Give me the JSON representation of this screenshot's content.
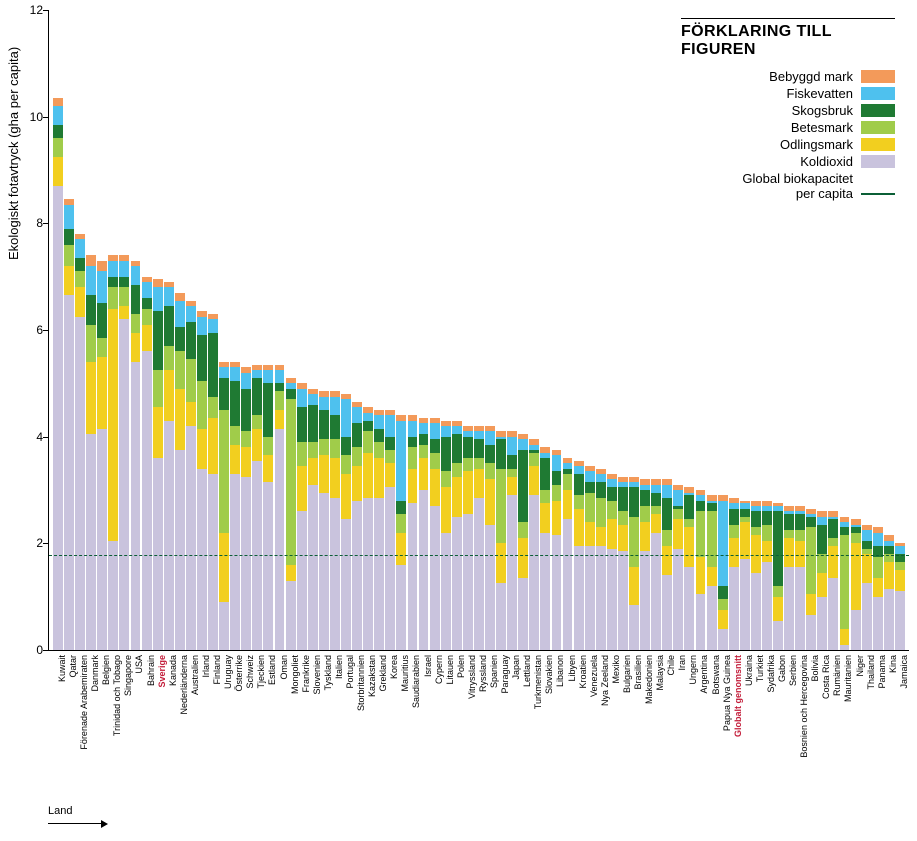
{
  "chart": {
    "type": "stacked-bar",
    "y_axis_label": "Ekologiskt fotavtryck (gha per capita)",
    "x_axis_label": "Land",
    "ylim": [
      0,
      12
    ],
    "ytick_step": 2,
    "yticks": [
      0,
      2,
      4,
      6,
      8,
      10,
      12
    ],
    "background_color": "#ffffff",
    "axis_color": "#000000",
    "grid_color": "#999999",
    "label_fontsize": 13,
    "tick_fontsize": 12,
    "xlabel_fontsize": 9,
    "reference_line": {
      "value": 1.78,
      "label_main": "Global biokapacitet",
      "label_sub": "per capita",
      "color": "#0b5f36"
    },
    "stack_order": [
      "koldioxid",
      "odlingsmark",
      "betesmark",
      "skogsbruk",
      "fiskevatten",
      "bebyggd"
    ],
    "colors": {
      "bebyggd": "#f39a5a",
      "fiskevatten": "#4ec1ee",
      "skogsbruk": "#1f7a33",
      "betesmark": "#a0cc4a",
      "odlingsmark": "#f2cf1f",
      "koldioxid": "#c9c3dd"
    },
    "highlight_color": "#c31d3a",
    "highlight_labels": [
      "Sverige",
      "Globalt genomsnitt"
    ]
  },
  "legend": {
    "title": "FÖRKLARING TILL FIGUREN",
    "items": [
      {
        "key": "bebyggd",
        "label": "Bebyggd mark"
      },
      {
        "key": "fiskevatten",
        "label": "Fiskevatten"
      },
      {
        "key": "skogsbruk",
        "label": "Skogsbruk"
      },
      {
        "key": "betesmark",
        "label": "Betesmark"
      },
      {
        "key": "odlingsmark",
        "label": "Odlingsmark"
      },
      {
        "key": "koldioxid",
        "label": "Koldioxid"
      }
    ]
  },
  "data": [
    {
      "label": "Kuwait",
      "koldioxid": 8.7,
      "odlingsmark": 0.55,
      "betesmark": 0.35,
      "skogsbruk": 0.25,
      "fiskevatten": 0.35,
      "bebyggd": 0.15
    },
    {
      "label": "Qatar",
      "koldioxid": 6.65,
      "odlingsmark": 0.55,
      "betesmark": 0.4,
      "skogsbruk": 0.3,
      "fiskevatten": 0.45,
      "bebyggd": 0.1
    },
    {
      "label": "Förenade Arabemiraten",
      "koldioxid": 6.25,
      "odlingsmark": 0.55,
      "betesmark": 0.3,
      "skogsbruk": 0.25,
      "fiskevatten": 0.35,
      "bebyggd": 0.1
    },
    {
      "label": "Danmark",
      "koldioxid": 4.05,
      "odlingsmark": 1.35,
      "betesmark": 0.7,
      "skogsbruk": 0.55,
      "fiskevatten": 0.55,
      "bebyggd": 0.2
    },
    {
      "label": "Belgien",
      "koldioxid": 4.15,
      "odlingsmark": 1.35,
      "betesmark": 0.35,
      "skogsbruk": 0.65,
      "fiskevatten": 0.6,
      "bebyggd": 0.2
    },
    {
      "label": "Trinidad och Tobago",
      "koldioxid": 2.05,
      "odlingsmark": 4.35,
      "betesmark": 0.4,
      "skogsbruk": 0.2,
      "fiskevatten": 0.3,
      "bebyggd": 0.1
    },
    {
      "label": "Singapore",
      "koldioxid": 6.2,
      "odlingsmark": 0.25,
      "betesmark": 0.35,
      "skogsbruk": 0.2,
      "fiskevatten": 0.3,
      "bebyggd": 0.1
    },
    {
      "label": "USA",
      "koldioxid": 5.4,
      "odlingsmark": 0.55,
      "betesmark": 0.35,
      "skogsbruk": 0.55,
      "fiskevatten": 0.35,
      "bebyggd": 0.1
    },
    {
      "label": "Bahrain",
      "koldioxid": 5.6,
      "odlingsmark": 0.5,
      "betesmark": 0.3,
      "skogsbruk": 0.2,
      "fiskevatten": 0.3,
      "bebyggd": 0.1
    },
    {
      "label": "Sverige",
      "koldioxid": 3.6,
      "odlingsmark": 0.95,
      "betesmark": 0.7,
      "skogsbruk": 1.1,
      "fiskevatten": 0.45,
      "bebyggd": 0.15
    },
    {
      "label": "Kanada",
      "koldioxid": 4.3,
      "odlingsmark": 0.95,
      "betesmark": 0.45,
      "skogsbruk": 0.75,
      "fiskevatten": 0.35,
      "bebyggd": 0.1
    },
    {
      "label": "Nederländerna",
      "koldioxid": 3.75,
      "odlingsmark": 1.15,
      "betesmark": 0.7,
      "skogsbruk": 0.45,
      "fiskevatten": 0.5,
      "bebyggd": 0.15
    },
    {
      "label": "Australien",
      "koldioxid": 4.2,
      "odlingsmark": 0.45,
      "betesmark": 0.8,
      "skogsbruk": 0.7,
      "fiskevatten": 0.3,
      "bebyggd": 0.1
    },
    {
      "label": "Irland",
      "koldioxid": 3.4,
      "odlingsmark": 0.75,
      "betesmark": 0.9,
      "skogsbruk": 0.85,
      "fiskevatten": 0.35,
      "bebyggd": 0.1
    },
    {
      "label": "Finland",
      "koldioxid": 3.3,
      "odlingsmark": 1.05,
      "betesmark": 0.4,
      "skogsbruk": 1.2,
      "fiskevatten": 0.25,
      "bebyggd": 0.1
    },
    {
      "label": "Uruguay",
      "koldioxid": 0.9,
      "odlingsmark": 1.3,
      "betesmark": 2.3,
      "skogsbruk": 0.6,
      "fiskevatten": 0.2,
      "bebyggd": 0.1
    },
    {
      "label": "Österrike",
      "koldioxid": 3.3,
      "odlingsmark": 0.55,
      "betesmark": 0.35,
      "skogsbruk": 0.85,
      "fiskevatten": 0.25,
      "bebyggd": 0.1
    },
    {
      "label": "Schweiz",
      "koldioxid": 3.25,
      "odlingsmark": 0.55,
      "betesmark": 0.3,
      "skogsbruk": 0.8,
      "fiskevatten": 0.3,
      "bebyggd": 0.1
    },
    {
      "label": "Tjeckien",
      "koldioxid": 3.55,
      "odlingsmark": 0.6,
      "betesmark": 0.25,
      "skogsbruk": 0.7,
      "fiskevatten": 0.15,
      "bebyggd": 0.1
    },
    {
      "label": "Estland",
      "koldioxid": 3.15,
      "odlingsmark": 0.5,
      "betesmark": 0.35,
      "skogsbruk": 1.0,
      "fiskevatten": 0.25,
      "bebyggd": 0.1
    },
    {
      "label": "Oman",
      "koldioxid": 4.15,
      "odlingsmark": 0.35,
      "betesmark": 0.35,
      "skogsbruk": 0.15,
      "fiskevatten": 0.25,
      "bebyggd": 0.1
    },
    {
      "label": "Mongoliet",
      "koldioxid": 1.3,
      "odlingsmark": 0.3,
      "betesmark": 3.1,
      "skogsbruk": 0.2,
      "fiskevatten": 0.1,
      "bebyggd": 0.1
    },
    {
      "label": "Frankrike",
      "koldioxid": 2.6,
      "odlingsmark": 0.85,
      "betesmark": 0.45,
      "skogsbruk": 0.65,
      "fiskevatten": 0.35,
      "bebyggd": 0.1
    },
    {
      "label": "Slovenien",
      "koldioxid": 3.1,
      "odlingsmark": 0.5,
      "betesmark": 0.3,
      "skogsbruk": 0.7,
      "fiskevatten": 0.2,
      "bebyggd": 0.1
    },
    {
      "label": "Tyskland",
      "koldioxid": 2.95,
      "odlingsmark": 0.7,
      "betesmark": 0.3,
      "skogsbruk": 0.55,
      "fiskevatten": 0.25,
      "bebyggd": 0.1
    },
    {
      "label": "Italien",
      "koldioxid": 2.85,
      "odlingsmark": 0.75,
      "betesmark": 0.35,
      "skogsbruk": 0.45,
      "fiskevatten": 0.35,
      "bebyggd": 0.1
    },
    {
      "label": "Portugal",
      "koldioxid": 2.45,
      "odlingsmark": 0.85,
      "betesmark": 0.35,
      "skogsbruk": 0.35,
      "fiskevatten": 0.7,
      "bebyggd": 0.1
    },
    {
      "label": "Storbritannien",
      "koldioxid": 2.8,
      "odlingsmark": 0.65,
      "betesmark": 0.35,
      "skogsbruk": 0.45,
      "fiskevatten": 0.3,
      "bebyggd": 0.1
    },
    {
      "label": "Kazakstan",
      "koldioxid": 2.85,
      "odlingsmark": 0.85,
      "betesmark": 0.4,
      "skogsbruk": 0.2,
      "fiskevatten": 0.15,
      "bebyggd": 0.1
    },
    {
      "label": "Grekland",
      "koldioxid": 2.85,
      "odlingsmark": 0.75,
      "betesmark": 0.3,
      "skogsbruk": 0.25,
      "fiskevatten": 0.25,
      "bebyggd": 0.1
    },
    {
      "label": "Korea",
      "koldioxid": 3.05,
      "odlingsmark": 0.45,
      "betesmark": 0.25,
      "skogsbruk": 0.25,
      "fiskevatten": 0.4,
      "bebyggd": 0.1
    },
    {
      "label": "Mauritius",
      "koldioxid": 1.6,
      "odlingsmark": 0.6,
      "betesmark": 0.35,
      "skogsbruk": 0.25,
      "fiskevatten": 1.5,
      "bebyggd": 0.1
    },
    {
      "label": "Saudiarabien",
      "koldioxid": 2.75,
      "odlingsmark": 0.65,
      "betesmark": 0.4,
      "skogsbruk": 0.2,
      "fiskevatten": 0.3,
      "bebyggd": 0.1
    },
    {
      "label": "Israel",
      "koldioxid": 3.0,
      "odlingsmark": 0.6,
      "betesmark": 0.25,
      "skogsbruk": 0.2,
      "fiskevatten": 0.2,
      "bebyggd": 0.1
    },
    {
      "label": "Cypern",
      "koldioxid": 2.7,
      "odlingsmark": 0.7,
      "betesmark": 0.3,
      "skogsbruk": 0.25,
      "fiskevatten": 0.3,
      "bebyggd": 0.1
    },
    {
      "label": "Litauen",
      "koldioxid": 2.2,
      "odlingsmark": 0.85,
      "betesmark": 0.3,
      "skogsbruk": 0.65,
      "fiskevatten": 0.2,
      "bebyggd": 0.1
    },
    {
      "label": "Polen",
      "koldioxid": 2.5,
      "odlingsmark": 0.75,
      "betesmark": 0.25,
      "skogsbruk": 0.55,
      "fiskevatten": 0.15,
      "bebyggd": 0.1
    },
    {
      "label": "Vitryssland",
      "koldioxid": 2.55,
      "odlingsmark": 0.8,
      "betesmark": 0.25,
      "skogsbruk": 0.4,
      "fiskevatten": 0.1,
      "bebyggd": 0.1
    },
    {
      "label": "Ryssland",
      "koldioxid": 2.85,
      "odlingsmark": 0.55,
      "betesmark": 0.2,
      "skogsbruk": 0.35,
      "fiskevatten": 0.15,
      "bebyggd": 0.1
    },
    {
      "label": "Spanien",
      "koldioxid": 2.35,
      "odlingsmark": 0.85,
      "betesmark": 0.3,
      "skogsbruk": 0.35,
      "fiskevatten": 0.25,
      "bebyggd": 0.1
    },
    {
      "label": "Paraguay",
      "koldioxid": 1.25,
      "odlingsmark": 0.75,
      "betesmark": 1.4,
      "skogsbruk": 0.55,
      "fiskevatten": 0.05,
      "bebyggd": 0.1
    },
    {
      "label": "Japan",
      "koldioxid": 2.9,
      "odlingsmark": 0.35,
      "betesmark": 0.15,
      "skogsbruk": 0.25,
      "fiskevatten": 0.35,
      "bebyggd": 0.1
    },
    {
      "label": "Lettland",
      "koldioxid": 1.35,
      "odlingsmark": 0.75,
      "betesmark": 0.3,
      "skogsbruk": 1.35,
      "fiskevatten": 0.2,
      "bebyggd": 0.1
    },
    {
      "label": "Turkmenistan",
      "koldioxid": 2.9,
      "odlingsmark": 0.55,
      "betesmark": 0.25,
      "skogsbruk": 0.05,
      "fiskevatten": 0.1,
      "bebyggd": 0.1
    },
    {
      "label": "Slovakien",
      "koldioxid": 2.2,
      "odlingsmark": 0.55,
      "betesmark": 0.25,
      "skogsbruk": 0.6,
      "fiskevatten": 0.1,
      "bebyggd": 0.1
    },
    {
      "label": "Libanon",
      "koldioxid": 2.15,
      "odlingsmark": 0.65,
      "betesmark": 0.3,
      "skogsbruk": 0.25,
      "fiskevatten": 0.3,
      "bebyggd": 0.1
    },
    {
      "label": "Libyen",
      "koldioxid": 2.45,
      "odlingsmark": 0.55,
      "betesmark": 0.3,
      "skogsbruk": 0.1,
      "fiskevatten": 0.1,
      "bebyggd": 0.1
    },
    {
      "label": "Kroatien",
      "koldioxid": 1.95,
      "odlingsmark": 0.7,
      "betesmark": 0.25,
      "skogsbruk": 0.4,
      "fiskevatten": 0.15,
      "bebyggd": 0.1
    },
    {
      "label": "Venezuela",
      "koldioxid": 1.95,
      "odlingsmark": 0.45,
      "betesmark": 0.55,
      "skogsbruk": 0.2,
      "fiskevatten": 0.2,
      "bebyggd": 0.1
    },
    {
      "label": "Nya Zeeland",
      "koldioxid": 1.95,
      "odlingsmark": 0.35,
      "betesmark": 0.55,
      "skogsbruk": 0.3,
      "fiskevatten": 0.15,
      "bebyggd": 0.1
    },
    {
      "label": "Mexiko",
      "koldioxid": 1.9,
      "odlingsmark": 0.55,
      "betesmark": 0.35,
      "skogsbruk": 0.25,
      "fiskevatten": 0.15,
      "bebyggd": 0.1
    },
    {
      "label": "Bulgarien",
      "koldioxid": 1.85,
      "odlingsmark": 0.5,
      "betesmark": 0.25,
      "skogsbruk": 0.45,
      "fiskevatten": 0.1,
      "bebyggd": 0.1
    },
    {
      "label": "Brasilien",
      "koldioxid": 0.85,
      "odlingsmark": 0.7,
      "betesmark": 0.95,
      "skogsbruk": 0.55,
      "fiskevatten": 0.1,
      "bebyggd": 0.1
    },
    {
      "label": "Makedonien",
      "koldioxid": 1.85,
      "odlingsmark": 0.55,
      "betesmark": 0.3,
      "skogsbruk": 0.3,
      "fiskevatten": 0.1,
      "bebyggd": 0.1
    },
    {
      "label": "Malaysia",
      "koldioxid": 2.2,
      "odlingsmark": 0.35,
      "betesmark": 0.15,
      "skogsbruk": 0.25,
      "fiskevatten": 0.15,
      "bebyggd": 0.1
    },
    {
      "label": "Chile",
      "koldioxid": 1.4,
      "odlingsmark": 0.55,
      "betesmark": 0.3,
      "skogsbruk": 0.6,
      "fiskevatten": 0.25,
      "bebyggd": 0.1
    },
    {
      "label": "Iran",
      "koldioxid": 1.9,
      "odlingsmark": 0.55,
      "betesmark": 0.2,
      "skogsbruk": 0.05,
      "fiskevatten": 0.3,
      "bebyggd": 0.1
    },
    {
      "label": "Ungern",
      "koldioxid": 1.55,
      "odlingsmark": 0.75,
      "betesmark": 0.15,
      "skogsbruk": 0.45,
      "fiskevatten": 0.05,
      "bebyggd": 0.1
    },
    {
      "label": "Argentina",
      "koldioxid": 1.05,
      "odlingsmark": 0.7,
      "betesmark": 0.85,
      "skogsbruk": 0.2,
      "fiskevatten": 0.1,
      "bebyggd": 0.1
    },
    {
      "label": "Botswana",
      "koldioxid": 1.2,
      "odlingsmark": 0.35,
      "betesmark": 1.05,
      "skogsbruk": 0.15,
      "fiskevatten": 0.05,
      "bebyggd": 0.1
    },
    {
      "label": "Papua Nya Guinea",
      "koldioxid": 0.4,
      "odlingsmark": 0.35,
      "betesmark": 0.2,
      "skogsbruk": 0.25,
      "fiskevatten": 1.6,
      "bebyggd": 0.1
    },
    {
      "label": "Globalt genomsnitt",
      "koldioxid": 1.55,
      "odlingsmark": 0.55,
      "betesmark": 0.25,
      "skogsbruk": 0.3,
      "fiskevatten": 0.1,
      "bebyggd": 0.1
    },
    {
      "label": "Ukraina",
      "koldioxid": 1.7,
      "odlingsmark": 0.7,
      "betesmark": 0.1,
      "skogsbruk": 0.15,
      "fiskevatten": 0.1,
      "bebyggd": 0.05
    },
    {
      "label": "Turkiet",
      "koldioxid": 1.45,
      "odlingsmark": 0.7,
      "betesmark": 0.15,
      "skogsbruk": 0.3,
      "fiskevatten": 0.1,
      "bebyggd": 0.1
    },
    {
      "label": "Sydafrika",
      "koldioxid": 1.65,
      "odlingsmark": 0.4,
      "betesmark": 0.3,
      "skogsbruk": 0.25,
      "fiskevatten": 0.1,
      "bebyggd": 0.1
    },
    {
      "label": "Gabon",
      "koldioxid": 0.55,
      "odlingsmark": 0.45,
      "betesmark": 0.2,
      "skogsbruk": 1.4,
      "fiskevatten": 0.1,
      "bebyggd": 0.05
    },
    {
      "label": "Serbien",
      "koldioxid": 1.55,
      "odlingsmark": 0.55,
      "betesmark": 0.15,
      "skogsbruk": 0.3,
      "fiskevatten": 0.05,
      "bebyggd": 0.1
    },
    {
      "label": "Bosnien och Hercegovina",
      "koldioxid": 1.55,
      "odlingsmark": 0.5,
      "betesmark": 0.2,
      "skogsbruk": 0.3,
      "fiskevatten": 0.05,
      "bebyggd": 0.1
    },
    {
      "label": "Bolivia",
      "koldioxid": 0.65,
      "odlingsmark": 0.4,
      "betesmark": 1.25,
      "skogsbruk": 0.2,
      "fiskevatten": 0.05,
      "bebyggd": 0.1
    },
    {
      "label": "Costa Rica",
      "koldioxid": 1.0,
      "odlingsmark": 0.45,
      "betesmark": 0.35,
      "skogsbruk": 0.55,
      "fiskevatten": 0.15,
      "bebyggd": 0.1
    },
    {
      "label": "Rumänien",
      "koldioxid": 1.35,
      "odlingsmark": 0.6,
      "betesmark": 0.15,
      "skogsbruk": 0.35,
      "fiskevatten": 0.05,
      "bebyggd": 0.1
    },
    {
      "label": "Mauritanien",
      "koldioxid": 0.1,
      "odlingsmark": 0.3,
      "betesmark": 1.75,
      "skogsbruk": 0.15,
      "fiskevatten": 0.1,
      "bebyggd": 0.1
    },
    {
      "label": "Niger",
      "koldioxid": 0.75,
      "odlingsmark": 1.25,
      "betesmark": 0.2,
      "skogsbruk": 0.1,
      "fiskevatten": 0.05,
      "bebyggd": 0.1
    },
    {
      "label": "Thailand",
      "koldioxid": 1.25,
      "odlingsmark": 0.55,
      "betesmark": 0.1,
      "skogsbruk": 0.15,
      "fiskevatten": 0.2,
      "bebyggd": 0.1
    },
    {
      "label": "Panama",
      "koldioxid": 1.0,
      "odlingsmark": 0.35,
      "betesmark": 0.4,
      "skogsbruk": 0.2,
      "fiskevatten": 0.25,
      "bebyggd": 0.1
    },
    {
      "label": "Kina",
      "koldioxid": 1.15,
      "odlingsmark": 0.5,
      "betesmark": 0.15,
      "skogsbruk": 0.15,
      "fiskevatten": 0.1,
      "bebyggd": 0.1
    },
    {
      "label": "Jamaica",
      "koldioxid": 1.1,
      "odlingsmark": 0.4,
      "betesmark": 0.15,
      "skogsbruk": 0.15,
      "fiskevatten": 0.15,
      "bebyggd": 0.05
    }
  ]
}
